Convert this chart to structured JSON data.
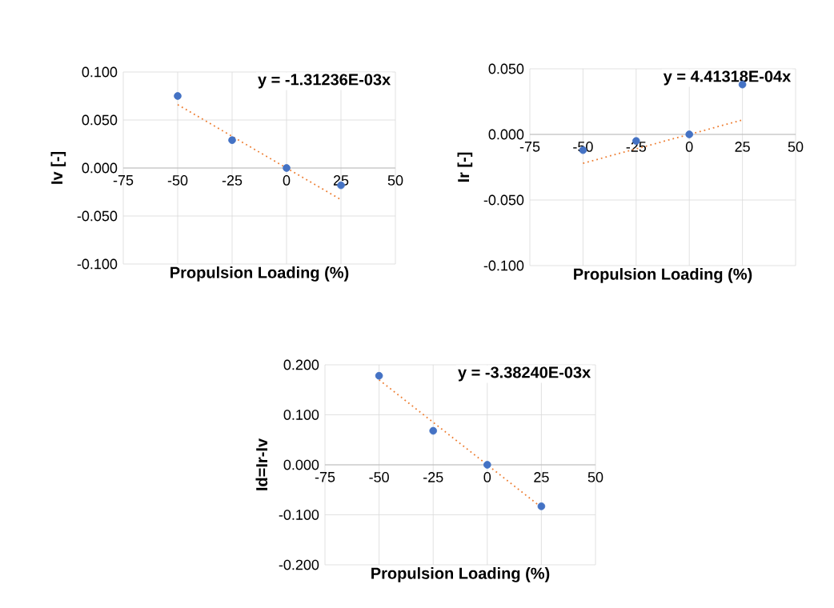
{
  "chart_data": [
    {
      "type": "scatter",
      "xlabel": "Propulsion Loading (%)",
      "ylabel": "Iv [-]",
      "annotations": [
        "y = -1.31236E-03x"
      ],
      "xlim": [
        -75,
        50
      ],
      "xticks": [
        -75,
        -50,
        -25,
        0,
        25,
        50
      ],
      "ylim": [
        -0.1,
        0.1
      ],
      "yticks": [
        {
          "value": -0.1,
          "label": "-0.100"
        },
        {
          "value": -0.05,
          "label": "-0.050"
        },
        {
          "value": 0,
          "label": "0.000"
        },
        {
          "value": 0.05,
          "label": "0.050"
        },
        {
          "value": 0.1,
          "label": "0.100"
        }
      ],
      "grid": true,
      "series": [
        {
          "type": "scatter",
          "color": "#4472c4",
          "marker": "circle",
          "x": [
            -50,
            -25,
            0,
            25
          ],
          "values": [
            0.075,
            0.029,
            0,
            -0.018
          ]
        },
        {
          "type": "line",
          "color": "#ed7d31",
          "line_style": "dotted",
          "marker": "none",
          "x": [
            -50,
            25
          ],
          "values": [
            0.066,
            -0.033
          ]
        }
      ]
    },
    {
      "type": "scatter",
      "xlabel": "Propulsion Loading (%)",
      "ylabel": "Ir [-]",
      "annotations": [
        "y = 4.41318E-04x"
      ],
      "xlim": [
        -75,
        50
      ],
      "xticks": [
        -75,
        -50,
        -25,
        0,
        25,
        50
      ],
      "ylim": [
        -0.1,
        0.05
      ],
      "yticks": [
        {
          "value": -0.1,
          "label": "-0.100"
        },
        {
          "value": -0.05,
          "label": "-0.050"
        },
        {
          "value": 0,
          "label": "0.000"
        },
        {
          "value": 0.05,
          "label": "0.050"
        }
      ],
      "grid": true,
      "series": [
        {
          "type": "scatter",
          "color": "#4472c4",
          "marker": "circle",
          "x": [
            -50,
            -25,
            0,
            25
          ],
          "values": [
            -0.012,
            -0.005,
            0,
            0.038
          ]
        },
        {
          "type": "line",
          "color": "#ed7d31",
          "line_style": "dotted",
          "marker": "none",
          "x": [
            -50,
            25
          ],
          "values": [
            -0.022,
            0.011
          ]
        }
      ]
    },
    {
      "type": "scatter",
      "xlabel": "Propulsion Loading (%)",
      "ylabel": "Id=Ir-Iv",
      "annotations": [
        "y = -3.38240E-03x"
      ],
      "xlim": [
        -75,
        50
      ],
      "xticks": [
        -75,
        -50,
        -25,
        0,
        25,
        50
      ],
      "ylim": [
        -0.2,
        0.2
      ],
      "yticks": [
        {
          "value": -0.2,
          "label": "-0.200"
        },
        {
          "value": -0.1,
          "label": "-0.100"
        },
        {
          "value": 0,
          "label": "0.000"
        },
        {
          "value": 0.1,
          "label": "0.100"
        },
        {
          "value": 0.2,
          "label": "0.200"
        }
      ],
      "grid": true,
      "series": [
        {
          "type": "scatter",
          "color": "#4472c4",
          "marker": "circle",
          "x": [
            -50,
            -25,
            0,
            25
          ],
          "values": [
            0.178,
            0.068,
            0,
            -0.083
          ]
        },
        {
          "type": "line",
          "color": "#ed7d31",
          "line_style": "dotted",
          "marker": "none",
          "x": [
            -50,
            25
          ],
          "values": [
            0.17,
            -0.085
          ]
        }
      ]
    }
  ]
}
